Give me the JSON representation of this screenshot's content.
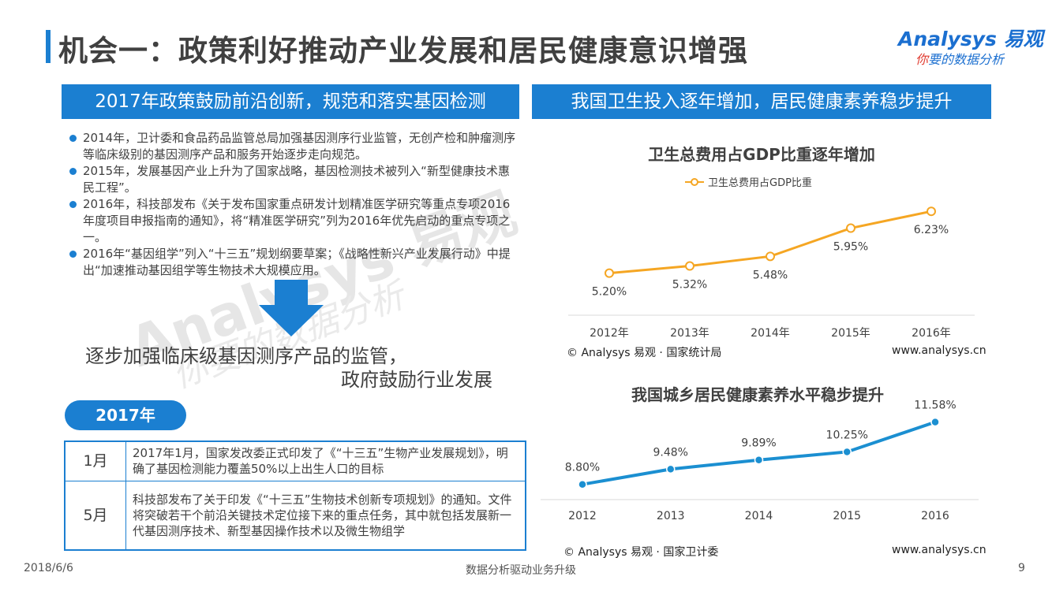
{
  "header": {
    "title": "机会一：政策利好推动产业发展和居民健康意识增强",
    "logo_main": "Analysys 易观",
    "logo_sub_red": "你",
    "logo_sub_rest": "要的数据分析"
  },
  "left": {
    "section_header": "2017年政策鼓励前沿创新，规范和落实基因检测",
    "bullets": [
      "2014年，卫计委和食品药品监管总局加强基因测序行业监管，无创产检和肿瘤测序等临床级别的基因测序产品和服务开始逐步走向规范。",
      "2015年，发展基因产业上升为了国家战略，基因检测技术被列入“新型健康技术惠民工程”。",
      "2016年，科技部发布《关于发布国家重点研发计划精准医学研究等重点专项2016年度项目申报指南的通知》，将“精准医学研究”列为2016年优先启动的重点专项之一。",
      "2016年“基因组学”列入“十三五”规划纲要草案；《战略性新兴产业发展行动》中提出“加速推动基因组学等生物技术大规模应用。"
    ],
    "supervision_line1": "逐步加强临床级基因测序产品的监管，",
    "supervision_line2": "政府鼓励行业发展",
    "year_badge": "2017年",
    "timeline": [
      {
        "month": "1月",
        "text": "2017年1月，国家发改委正式印发了《“十三五”生物产业发展规划》，明确了基因检测能力覆盖50%以上出生人口的目标"
      },
      {
        "month": "5月",
        "text": "科技部发布了关于印发《“十三五”生物技术创新专项规划》的通知。文件将突破若干个前沿关键技术定位接下来的重点任务，其中就包括发展新一代基因测序技术、新型基因操作技术以及微生物组学"
      }
    ],
    "watermark_main": "Analysys 易观",
    "watermark_sub": "你要的数据分析"
  },
  "right": {
    "section_header": "我国卫生投入逐年增加，居民健康素养稳步提升",
    "source1": "© Analysys 易观 · 国家统计局",
    "url1": "www.analysys.cn",
    "source2": "© Analysys 易观 · 国家卫计委",
    "url2": "www.analysys.cn"
  },
  "chart_data": [
    {
      "type": "line",
      "title": "卫生总费用占GDP比重逐年增加",
      "categories": [
        "2012年",
        "2013年",
        "2014年",
        "2015年",
        "2016年"
      ],
      "series": [
        {
          "name": "卫生总费用占GDP比重",
          "values": [
            5.2,
            5.32,
            5.48,
            5.95,
            6.23
          ]
        }
      ],
      "data_labels": [
        "5.20%",
        "5.32%",
        "5.48%",
        "5.95%",
        "6.23%"
      ],
      "ylim": [
        4.5,
        6.6
      ],
      "legend": "top",
      "grid": false,
      "color": "#f5a623"
    },
    {
      "type": "line",
      "title": "我国城乡居民健康素养水平稳步提升",
      "categories": [
        "2012",
        "2013",
        "2014",
        "2015",
        "2016"
      ],
      "series": [
        {
          "values": [
            8.8,
            9.48,
            9.89,
            10.25,
            11.58
          ]
        }
      ],
      "data_labels": [
        "8.80%",
        "9.48%",
        "9.89%",
        "10.25%",
        "11.58%"
      ],
      "ylim": [
        7.7,
        12.2
      ],
      "legend": "none",
      "grid": false,
      "color": "#1b8fd1"
    }
  ],
  "footer": {
    "date": "2018/6/6",
    "center": "数据分析驱动业务升级",
    "page": "9"
  }
}
